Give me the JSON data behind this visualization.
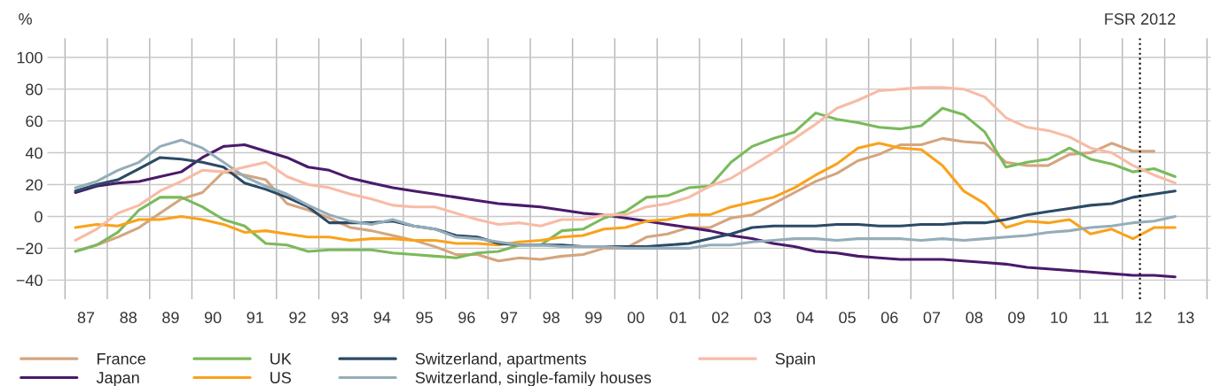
{
  "chart_data": {
    "type": "line",
    "ylabel": "%",
    "x": [
      "1987-04",
      "1987-10",
      "1988-04",
      "1988-10",
      "1989-04",
      "1989-10",
      "1990-04",
      "1990-10",
      "1991-04",
      "1991-10",
      "1992-04",
      "1992-10",
      "1993-04",
      "1993-10",
      "1994-04",
      "1994-10",
      "1995-04",
      "1995-10",
      "1996-04",
      "1996-10",
      "1997-04",
      "1997-10",
      "1998-04",
      "1998-10",
      "1999-04",
      "1999-10",
      "2000-04",
      "2000-10",
      "2001-04",
      "2001-10",
      "2002-04",
      "2002-10",
      "2003-04",
      "2003-10",
      "2004-04",
      "2004-10",
      "2005-04",
      "2005-10",
      "2006-04",
      "2006-10",
      "2007-04",
      "2007-10",
      "2008-04",
      "2008-10",
      "2009-04",
      "2009-10",
      "2010-04",
      "2010-10",
      "2011-04",
      "2011-10",
      "2012-04",
      "2012-10",
      "2013-04"
    ],
    "series": [
      {
        "name": "France",
        "color": "#d4a57f",
        "values": [
          -22,
          -18,
          -13,
          -7,
          2,
          11,
          15,
          28,
          26,
          23,
          8,
          4,
          -1,
          -7,
          -9,
          -12,
          -15,
          -19,
          -24,
          -24,
          -28,
          -26,
          -27,
          -25,
          -24,
          -20,
          -20,
          -13,
          -11,
          -7,
          -7,
          -1,
          1,
          8,
          15,
          22,
          27,
          35,
          39,
          45,
          45,
          49,
          47,
          46,
          34,
          32,
          32,
          39,
          40,
          46,
          41,
          41,
          null
        ]
      },
      {
        "name": "Japan",
        "color": "#4a1a6a",
        "values": [
          15,
          19,
          21,
          22,
          25,
          28,
          37,
          44,
          45,
          41,
          37,
          31,
          29,
          24,
          21,
          18,
          16,
          14,
          12,
          10,
          8,
          7,
          6,
          4,
          2,
          1,
          -1,
          -3,
          -5,
          -7,
          -9,
          -12,
          -14,
          -17,
          -19,
          -22,
          -23,
          -25,
          -26,
          -27,
          -27,
          -27,
          -28,
          -29,
          -30,
          -32,
          -33,
          -34,
          -35,
          -36,
          -37,
          -37,
          -38
        ]
      },
      {
        "name": "UK",
        "color": "#7aba5b",
        "values": [
          -22,
          -18,
          -10,
          4,
          12,
          12,
          6,
          -2,
          -6,
          -17,
          -18,
          -22,
          -21,
          -21,
          -21,
          -23,
          -24,
          -25,
          -26,
          -23,
          -22,
          -18,
          -18,
          -9,
          -8,
          -1,
          3,
          12,
          13,
          18,
          19,
          34,
          44,
          49,
          53,
          65,
          61,
          59,
          56,
          55,
          57,
          68,
          64,
          53,
          31,
          34,
          36,
          43,
          36,
          33,
          28,
          30,
          25
        ]
      },
      {
        "name": "US",
        "color": "#f9a21b",
        "values": [
          -7,
          -5,
          -6,
          -2,
          -2,
          0,
          -2,
          -5,
          -10,
          -9,
          -11,
          -13,
          -13,
          -15,
          -14,
          -14,
          -15,
          -15,
          -17,
          -17,
          -18,
          -16,
          -15,
          -13,
          -12,
          -8,
          -7,
          -3,
          -2,
          1,
          1,
          6,
          9,
          12,
          18,
          26,
          33,
          43,
          46,
          43,
          42,
          32,
          16,
          8,
          -7,
          -3,
          -4,
          -2,
          -11,
          -8,
          -14,
          -7,
          -7
        ]
      },
      {
        "name": "Switzerland, apartments",
        "color": "#2b4a66",
        "values": [
          16,
          20,
          23,
          30,
          37,
          36,
          34,
          31,
          21,
          17,
          12,
          6,
          -4,
          -4,
          -4,
          -3,
          -6,
          -8,
          -12,
          -13,
          -17,
          -18,
          -18,
          -18,
          -19,
          -19,
          -19,
          -19,
          -18,
          -17,
          -14,
          -11,
          -7,
          -6,
          -6,
          -6,
          -5,
          -5,
          -6,
          -6,
          -5,
          -5,
          -4,
          -4,
          -2,
          1,
          3,
          5,
          7,
          8,
          12,
          14,
          16
        ]
      },
      {
        "name": "Switzerland, single-family houses",
        "color": "#94adb9",
        "values": [
          18,
          22,
          29,
          34,
          44,
          48,
          43,
          34,
          25,
          19,
          14,
          7,
          1,
          -3,
          -5,
          -2,
          -6,
          -8,
          -13,
          -14,
          -16,
          -18,
          -18,
          -19,
          -19,
          -19,
          -20,
          -20,
          -20,
          -20,
          -18,
          -18,
          -16,
          -15,
          -14,
          -14,
          -15,
          -14,
          -14,
          -14,
          -15,
          -14,
          -15,
          -14,
          -13,
          -12,
          -10,
          -9,
          -7,
          -6,
          -4,
          -3,
          0
        ]
      },
      {
        "name": "Spain",
        "color": "#f8bba5",
        "values": [
          -15,
          -8,
          2,
          7,
          16,
          22,
          29,
          28,
          31,
          34,
          25,
          20,
          18,
          14,
          11,
          7,
          6,
          6,
          2,
          -2,
          -5,
          -4,
          -6,
          -2,
          -2,
          1,
          1,
          6,
          8,
          12,
          19,
          24,
          32,
          40,
          49,
          58,
          68,
          73,
          79,
          80,
          81,
          81,
          80,
          75,
          62,
          56,
          54,
          50,
          43,
          40,
          32,
          26,
          21
        ]
      }
    ],
    "xlim": [
      "1986-08",
      "2014-02"
    ],
    "xticks": [
      {
        "value": "1987-01",
        "label": null
      },
      {
        "value": "1987-07",
        "label": "87"
      },
      {
        "value": "1988-01",
        "label": null
      },
      {
        "value": "1988-07",
        "label": "88"
      },
      {
        "value": "1989-01",
        "label": null
      },
      {
        "value": "1989-07",
        "label": "89"
      },
      {
        "value": "1990-01",
        "label": null
      },
      {
        "value": "1990-07",
        "label": "90"
      },
      {
        "value": "1991-01",
        "label": null
      },
      {
        "value": "1991-07",
        "label": "91"
      },
      {
        "value": "1992-01",
        "label": null
      },
      {
        "value": "1992-07",
        "label": "92"
      },
      {
        "value": "1993-01",
        "label": null
      },
      {
        "value": "1993-07",
        "label": "93"
      },
      {
        "value": "1994-01",
        "label": null
      },
      {
        "value": "1994-07",
        "label": "94"
      },
      {
        "value": "1995-01",
        "label": null
      },
      {
        "value": "1995-07",
        "label": "95"
      },
      {
        "value": "1996-01",
        "label": null
      },
      {
        "value": "1996-07",
        "label": "96"
      },
      {
        "value": "1997-01",
        "label": null
      },
      {
        "value": "1997-07",
        "label": "97"
      },
      {
        "value": "1998-01",
        "label": null
      },
      {
        "value": "1998-07",
        "label": "98"
      },
      {
        "value": "1999-01",
        "label": null
      },
      {
        "value": "1999-07",
        "label": "99"
      },
      {
        "value": "2000-01",
        "label": null
      },
      {
        "value": "2000-07",
        "label": "00"
      },
      {
        "value": "2001-01",
        "label": null
      },
      {
        "value": "2001-07",
        "label": "01"
      },
      {
        "value": "2002-01",
        "label": null
      },
      {
        "value": "2002-07",
        "label": "02"
      },
      {
        "value": "2003-01",
        "label": null
      },
      {
        "value": "2003-07",
        "label": "03"
      },
      {
        "value": "2004-01",
        "label": null
      },
      {
        "value": "2004-07",
        "label": "04"
      },
      {
        "value": "2005-01",
        "label": null
      },
      {
        "value": "2005-07",
        "label": "05"
      },
      {
        "value": "2006-01",
        "label": null
      },
      {
        "value": "2006-07",
        "label": "06"
      },
      {
        "value": "2007-01",
        "label": null
      },
      {
        "value": "2007-07",
        "label": "07"
      },
      {
        "value": "2008-01",
        "label": null
      },
      {
        "value": "2008-07",
        "label": "08"
      },
      {
        "value": "2009-01",
        "label": null
      },
      {
        "value": "2009-07",
        "label": "09"
      },
      {
        "value": "2010-01",
        "label": null
      },
      {
        "value": "2010-07",
        "label": "10"
      },
      {
        "value": "2011-01",
        "label": null
      },
      {
        "value": "2011-07",
        "label": "11"
      },
      {
        "value": "2012-01",
        "label": null
      },
      {
        "value": "2012-07",
        "label": "12"
      },
      {
        "value": "2013-01",
        "label": null
      },
      {
        "value": "2013-07",
        "label": "13"
      },
      {
        "value": "2014-01",
        "label": null
      }
    ],
    "ylim": [
      -52,
      112
    ],
    "yticks": [
      {
        "value": -40,
        "label": "−40"
      },
      {
        "value": -20,
        "label": "−20"
      },
      0,
      20,
      40,
      60,
      80,
      100
    ],
    "ref_lines": [
      {
        "axis": "x",
        "value": "2012-06",
        "label": "FSR 2012",
        "color": "#000000",
        "line_style": "dotted"
      }
    ],
    "grid": true,
    "legend": "bottom",
    "marker": "none",
    "line_style": "solid"
  }
}
